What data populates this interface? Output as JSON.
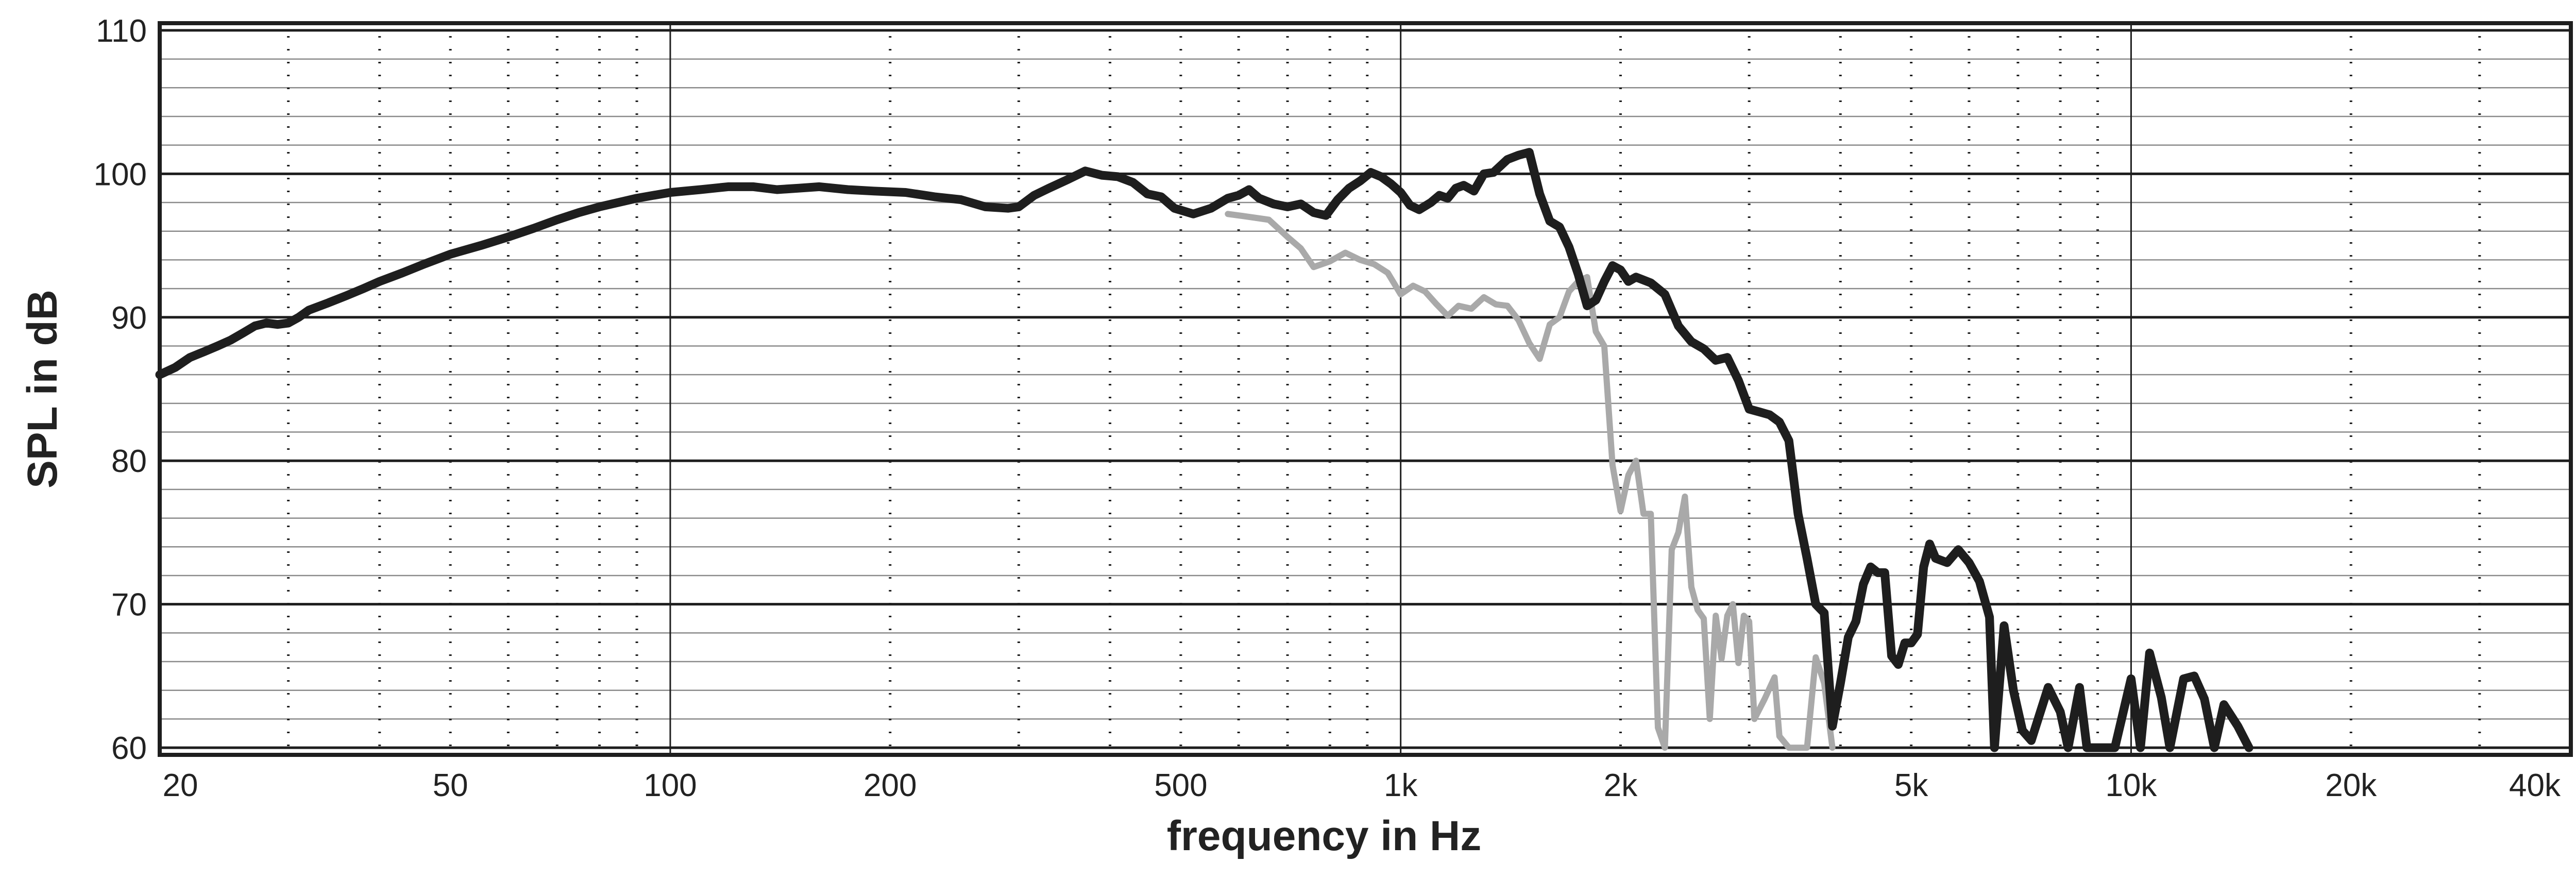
{
  "chart_data": {
    "type": "line",
    "xlabel": "frequency in Hz",
    "ylabel": "SPL in dB",
    "x_scale": "log",
    "xlim": [
      20,
      40000
    ],
    "ylim": [
      59.5,
      110.5
    ],
    "grid": true,
    "x_ticks": [
      {
        "value": 20,
        "label": "20"
      },
      {
        "value": 50,
        "label": "50"
      },
      {
        "value": 100,
        "label": "100"
      },
      {
        "value": 200,
        "label": "200"
      },
      {
        "value": 500,
        "label": "500"
      },
      {
        "value": 1000,
        "label": "1k"
      },
      {
        "value": 2000,
        "label": "2k"
      },
      {
        "value": 5000,
        "label": "5k"
      },
      {
        "value": 10000,
        "label": "10k"
      },
      {
        "value": 20000,
        "label": "20k"
      },
      {
        "value": 40000,
        "label": "40k"
      }
    ],
    "y_ticks": [
      {
        "value": 60,
        "label": "60"
      },
      {
        "value": 70,
        "label": "70"
      },
      {
        "value": 80,
        "label": "80"
      },
      {
        "value": 90,
        "label": "90"
      },
      {
        "value": 100,
        "label": "100"
      },
      {
        "value": 110,
        "label": "110"
      }
    ],
    "series": [
      {
        "color": "#1e1e1e",
        "points": [
          [
            20,
            86
          ],
          [
            21,
            86.5
          ],
          [
            22,
            87.2
          ],
          [
            23,
            87.6
          ],
          [
            24,
            88
          ],
          [
            25,
            88.4
          ],
          [
            26,
            88.9
          ],
          [
            27,
            89.4
          ],
          [
            28,
            89.6
          ],
          [
            29,
            89.5
          ],
          [
            30,
            89.6
          ],
          [
            31,
            90
          ],
          [
            32,
            90.5
          ],
          [
            34,
            91
          ],
          [
            36,
            91.5
          ],
          [
            38,
            92
          ],
          [
            40,
            92.5
          ],
          [
            43,
            93.1
          ],
          [
            46,
            93.7
          ],
          [
            50,
            94.4
          ],
          [
            55,
            95
          ],
          [
            60,
            95.6
          ],
          [
            65,
            96.2
          ],
          [
            70,
            96.8
          ],
          [
            75,
            97.3
          ],
          [
            80,
            97.7
          ],
          [
            90,
            98.3
          ],
          [
            100,
            98.7
          ],
          [
            110,
            98.9
          ],
          [
            120,
            99.1
          ],
          [
            130,
            99.1
          ],
          [
            140,
            98.9
          ],
          [
            150,
            99
          ],
          [
            160,
            99.1
          ],
          [
            175,
            98.9
          ],
          [
            190,
            98.8
          ],
          [
            210,
            98.7
          ],
          [
            230,
            98.4
          ],
          [
            250,
            98.2
          ],
          [
            270,
            97.7
          ],
          [
            290,
            97.6
          ],
          [
            300,
            97.7
          ],
          [
            315,
            98.5
          ],
          [
            330,
            99
          ],
          [
            350,
            99.6
          ],
          [
            370,
            100.2
          ],
          [
            390,
            99.9
          ],
          [
            410,
            99.8
          ],
          [
            430,
            99.4
          ],
          [
            450,
            98.6
          ],
          [
            470,
            98.4
          ],
          [
            490,
            97.6
          ],
          [
            520,
            97.2
          ],
          [
            550,
            97.6
          ],
          [
            580,
            98.3
          ],
          [
            600,
            98.5
          ],
          [
            620,
            98.9
          ],
          [
            640,
            98.3
          ],
          [
            670,
            97.9
          ],
          [
            700,
            97.7
          ],
          [
            730,
            97.9
          ],
          [
            760,
            97.3
          ],
          [
            790,
            97.1
          ],
          [
            820,
            98.2
          ],
          [
            850,
            99
          ],
          [
            880,
            99.5
          ],
          [
            910,
            100.1
          ],
          [
            940,
            99.8
          ],
          [
            970,
            99.3
          ],
          [
            1000,
            98.7
          ],
          [
            1030,
            97.8
          ],
          [
            1060,
            97.5
          ],
          [
            1100,
            98
          ],
          [
            1130,
            98.5
          ],
          [
            1160,
            98.3
          ],
          [
            1190,
            99
          ],
          [
            1220,
            99.2
          ],
          [
            1260,
            98.8
          ],
          [
            1300,
            100
          ],
          [
            1340,
            100.1
          ],
          [
            1400,
            101
          ],
          [
            1450,
            101.3
          ],
          [
            1500,
            101.5
          ],
          [
            1550,
            98.6
          ],
          [
            1600,
            96.7
          ],
          [
            1650,
            96.3
          ],
          [
            1700,
            94.9
          ],
          [
            1750,
            93
          ],
          [
            1800,
            90.8
          ],
          [
            1850,
            91.2
          ],
          [
            1900,
            92.5
          ],
          [
            1950,
            93.6
          ],
          [
            2000,
            93.3
          ],
          [
            2050,
            92.5
          ],
          [
            2100,
            92.8
          ],
          [
            2150,
            92.6
          ],
          [
            2200,
            92.4
          ],
          [
            2300,
            91.6
          ],
          [
            2400,
            89.4
          ],
          [
            2500,
            88.3
          ],
          [
            2600,
            87.8
          ],
          [
            2700,
            87
          ],
          [
            2800,
            87.2
          ],
          [
            2900,
            85.6
          ],
          [
            3000,
            83.6
          ],
          [
            3100,
            83.4
          ],
          [
            3200,
            83.2
          ],
          [
            3300,
            82.7
          ],
          [
            3400,
            81.4
          ],
          [
            3500,
            76.3
          ],
          [
            3600,
            73.2
          ],
          [
            3700,
            70
          ],
          [
            3800,
            69.4
          ],
          [
            3900,
            61.5
          ],
          [
            4000,
            64.5
          ],
          [
            4100,
            67.7
          ],
          [
            4200,
            68.8
          ],
          [
            4300,
            71.4
          ],
          [
            4400,
            72.6
          ],
          [
            4500,
            72.2
          ],
          [
            4600,
            72.2
          ],
          [
            4700,
            66.4
          ],
          [
            4800,
            65.8
          ],
          [
            4900,
            67.3
          ],
          [
            5000,
            67.3
          ],
          [
            5100,
            67.9
          ],
          [
            5200,
            72.6
          ],
          [
            5300,
            74.2
          ],
          [
            5400,
            73.2
          ],
          [
            5600,
            72.9
          ],
          [
            5800,
            73.8
          ],
          [
            6000,
            72.9
          ],
          [
            6200,
            71.6
          ],
          [
            6400,
            69.1
          ],
          [
            6500,
            60
          ],
          [
            6700,
            68.5
          ],
          [
            6900,
            64
          ],
          [
            7100,
            61.2
          ],
          [
            7300,
            60.5
          ],
          [
            7700,
            64.2
          ],
          [
            8000,
            62.5
          ],
          [
            8200,
            60
          ],
          [
            8500,
            64.2
          ],
          [
            8700,
            60
          ],
          [
            9000,
            60
          ],
          [
            9500,
            60
          ],
          [
            10000,
            64.8
          ],
          [
            10300,
            60
          ],
          [
            10600,
            66.6
          ],
          [
            11000,
            63.5
          ],
          [
            11300,
            60
          ],
          [
            11800,
            64.8
          ],
          [
            12200,
            65
          ],
          [
            12600,
            63.4
          ],
          [
            13000,
            60
          ],
          [
            13400,
            63
          ],
          [
            14000,
            61.5
          ],
          [
            14500,
            60
          ]
        ]
      },
      {
        "color": "#a9a9a9",
        "points": [
          [
            580,
            97.2
          ],
          [
            620,
            97
          ],
          [
            660,
            96.8
          ],
          [
            700,
            95.6
          ],
          [
            730,
            94.8
          ],
          [
            760,
            93.5
          ],
          [
            800,
            93.9
          ],
          [
            840,
            94.5
          ],
          [
            880,
            94
          ],
          [
            920,
            93.7
          ],
          [
            960,
            93.1
          ],
          [
            1000,
            91.6
          ],
          [
            1040,
            92.2
          ],
          [
            1080,
            91.8
          ],
          [
            1120,
            90.9
          ],
          [
            1160,
            90.1
          ],
          [
            1200,
            90.8
          ],
          [
            1250,
            90.6
          ],
          [
            1300,
            91.4
          ],
          [
            1350,
            90.9
          ],
          [
            1400,
            90.8
          ],
          [
            1450,
            89.8
          ],
          [
            1500,
            88.2
          ],
          [
            1550,
            87.1
          ],
          [
            1600,
            89.5
          ],
          [
            1650,
            90
          ],
          [
            1700,
            91.8
          ],
          [
            1750,
            92.5
          ],
          [
            1800,
            92.8
          ],
          [
            1850,
            89
          ],
          [
            1900,
            88
          ],
          [
            1950,
            79.7
          ],
          [
            2000,
            76.5
          ],
          [
            2050,
            79
          ],
          [
            2100,
            80
          ],
          [
            2150,
            76.3
          ],
          [
            2200,
            76.3
          ],
          [
            2250,
            61.4
          ],
          [
            2300,
            60
          ],
          [
            2350,
            73.8
          ],
          [
            2400,
            75
          ],
          [
            2450,
            77.5
          ],
          [
            2500,
            71.2
          ],
          [
            2550,
            69.6
          ],
          [
            2600,
            69
          ],
          [
            2650,
            62
          ],
          [
            2700,
            69.2
          ],
          [
            2750,
            66.2
          ],
          [
            2800,
            69.2
          ],
          [
            2850,
            70
          ],
          [
            2900,
            65.9
          ],
          [
            2950,
            69.2
          ],
          [
            3000,
            68.8
          ],
          [
            3050,
            62
          ],
          [
            3150,
            63.4
          ],
          [
            3250,
            64.9
          ],
          [
            3300,
            60.8
          ],
          [
            3400,
            60
          ],
          [
            3500,
            60
          ],
          [
            3600,
            60
          ],
          [
            3700,
            66.3
          ],
          [
            3800,
            64.5
          ],
          [
            3900,
            60
          ]
        ]
      }
    ]
  }
}
